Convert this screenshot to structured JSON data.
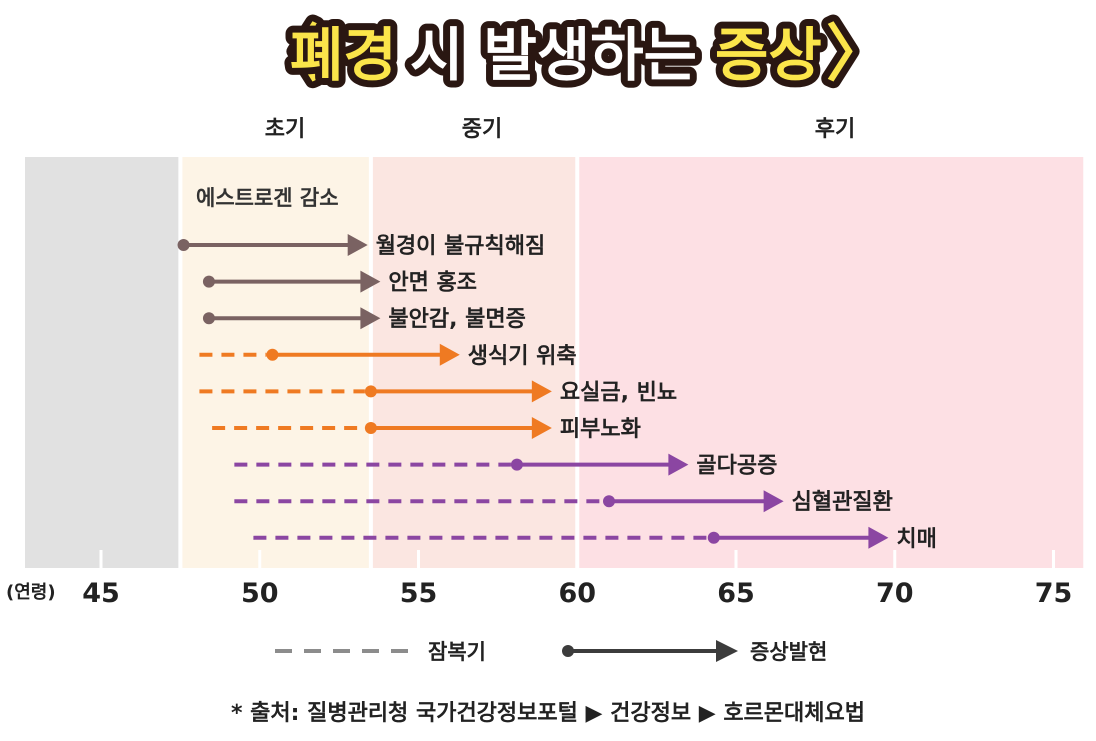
{
  "title": {
    "open_bracket": "〈",
    "highlight1": "폐경",
    "middle": "시 발생하는",
    "highlight2": "증상",
    "close_bracket": "〉"
  },
  "colors": {
    "gray_band": "#e1e1e1",
    "early_band": "#fdf4e6",
    "mid_band": "#fbe6e1",
    "late_band": "#fde0e4",
    "brown": "#7a6262",
    "orange": "#ef7a22",
    "purple": "#8b46a2",
    "legend_gray": "#8c8c8c",
    "legend_dark": "#3c3c3c",
    "title_yellow": "#fbe54a",
    "title_dark": "#2a1712"
  },
  "chart_data": {
    "type": "timeline",
    "x_unit_label": "(연령)",
    "xlim": [
      42.5,
      76
    ],
    "ticks": [
      45,
      50,
      55,
      60,
      65,
      70,
      75
    ],
    "tick_labels": [
      "45",
      "50",
      "55",
      "60",
      "65",
      "70",
      "75"
    ],
    "phases": [
      {
        "label": "초기",
        "start": 47.5,
        "end": 53.5,
        "color": "#fdf4e6"
      },
      {
        "label": "중기",
        "start": 53.5,
        "end": 60,
        "color": "#fbe6e1"
      },
      {
        "label": "후기",
        "start": 60,
        "end": 76,
        "color": "#fde0e4"
      }
    ],
    "pre_phase": {
      "start": 42.5,
      "end": 47.5,
      "color": "#e1e1e1"
    },
    "header_label": "에스트로겐 감소",
    "symptoms": [
      {
        "label": "월경이 불규칙해짐",
        "latent_start": null,
        "onset": 47.6,
        "end": 53.4,
        "color": "#7a6262"
      },
      {
        "label": "안면 홍조",
        "latent_start": null,
        "onset": 48.4,
        "end": 53.8,
        "color": "#7a6262"
      },
      {
        "label": "불안감, 불면증",
        "latent_start": null,
        "onset": 48.4,
        "end": 53.8,
        "color": "#7a6262"
      },
      {
        "label": "생식기 위축",
        "latent_start": 48.1,
        "onset": 50.4,
        "end": 56.3,
        "color": "#ef7a22"
      },
      {
        "label": "요실금, 빈뇨",
        "latent_start": 48.1,
        "onset": 53.5,
        "end": 59.2,
        "color": "#ef7a22"
      },
      {
        "label": "피부노화",
        "latent_start": 48.5,
        "onset": 53.5,
        "end": 59.2,
        "color": "#ef7a22"
      },
      {
        "label": "골다공증",
        "latent_start": 49.2,
        "onset": 58.1,
        "end": 63.5,
        "color": "#8b46a2"
      },
      {
        "label": "심혈관질환",
        "latent_start": 49.2,
        "onset": 61.0,
        "end": 66.5,
        "color": "#8b46a2"
      },
      {
        "label": "치매",
        "latent_start": 49.8,
        "onset": 64.3,
        "end": 69.8,
        "color": "#8b46a2"
      }
    ],
    "legend": [
      {
        "label": "잠복기",
        "style": "dashed"
      },
      {
        "label": "증상발현",
        "style": "solid-arrow"
      }
    ]
  },
  "source_note": "* 출처: 질병관리청 국가건강정보포털 ▶ 건강정보  ▶ 호르몬대체요법"
}
